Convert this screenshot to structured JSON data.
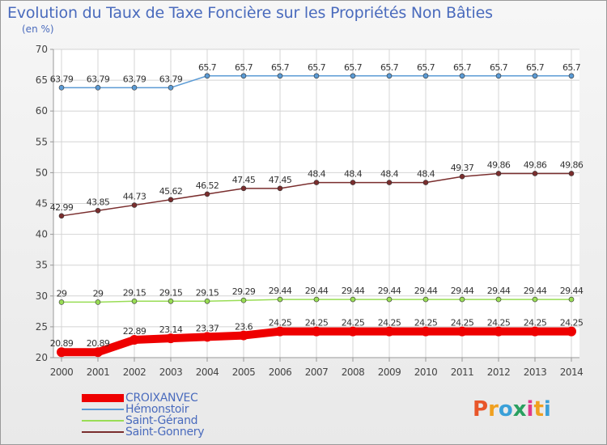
{
  "title": "Evolution du Taux de Taxe Foncière sur les Propriétés Non Bâties",
  "subtitle": "(en %)",
  "logo_text": "Proxiti",
  "chart_data": {
    "type": "line",
    "x": [
      "2000",
      "2001",
      "2002",
      "2003",
      "2004",
      "2005",
      "2006",
      "2007",
      "2008",
      "2009",
      "2010",
      "2011",
      "2012",
      "2013",
      "2014"
    ],
    "ylim": [
      20,
      70
    ],
    "yticks": [
      20,
      25,
      30,
      35,
      40,
      45,
      50,
      55,
      60,
      65,
      70
    ],
    "grid": true,
    "legend_position": "bottom-left",
    "series": [
      {
        "name": "CROIXANVEC",
        "color": "#ee0000",
        "emphasis": true,
        "values": [
          20.89,
          20.89,
          22.89,
          23.14,
          23.37,
          23.6,
          24.25,
          24.25,
          24.25,
          24.25,
          24.25,
          24.25,
          24.25,
          24.25,
          24.25
        ],
        "labels": [
          "20.89",
          "20.89",
          "22.89",
          "23.14",
          "23.37",
          "23.6",
          "24.25",
          "24.25",
          "24.25",
          "24.25",
          "24.25",
          "24.25",
          "24.25",
          "24.25",
          "24.25"
        ]
      },
      {
        "name": "Hémonstoir",
        "color": "#5b9bd5",
        "emphasis": false,
        "values": [
          63.79,
          63.79,
          63.79,
          63.79,
          65.7,
          65.7,
          65.7,
          65.7,
          65.7,
          65.7,
          65.7,
          65.7,
          65.7,
          65.7,
          65.7
        ],
        "labels": [
          "63.79",
          "63.79",
          "63.79",
          "63.79",
          "65.7",
          "65.7",
          "65.7",
          "65.7",
          "65.7",
          "65.7",
          "65.7",
          "65.7",
          "65.7",
          "65.7",
          "65.7"
        ]
      },
      {
        "name": "Saint-Gérand",
        "color": "#99dd55",
        "emphasis": false,
        "values": [
          29,
          29,
          29.15,
          29.15,
          29.15,
          29.29,
          29.44,
          29.44,
          29.44,
          29.44,
          29.44,
          29.44,
          29.44,
          29.44,
          29.44
        ],
        "labels": [
          "29",
          "29",
          "29.15",
          "29.15",
          "29.15",
          "29.29",
          "29.44",
          "29.44",
          "29.44",
          "29.44",
          "29.44",
          "29.44",
          "29.44",
          "29.44",
          "29.44"
        ]
      },
      {
        "name": "Saint-Gonnery",
        "color": "#7a2e2e",
        "emphasis": false,
        "values": [
          42.99,
          43.85,
          44.73,
          45.62,
          46.52,
          47.45,
          47.45,
          48.4,
          48.4,
          48.4,
          48.4,
          49.37,
          49.86,
          49.86,
          49.86
        ],
        "labels": [
          "42.99",
          "43.85",
          "44.73",
          "45.62",
          "46.52",
          "47.45",
          "47.45",
          "48.4",
          "48.4",
          "48.4",
          "48.4",
          "49.37",
          "49.86",
          "49.86",
          "49.86"
        ]
      }
    ]
  }
}
